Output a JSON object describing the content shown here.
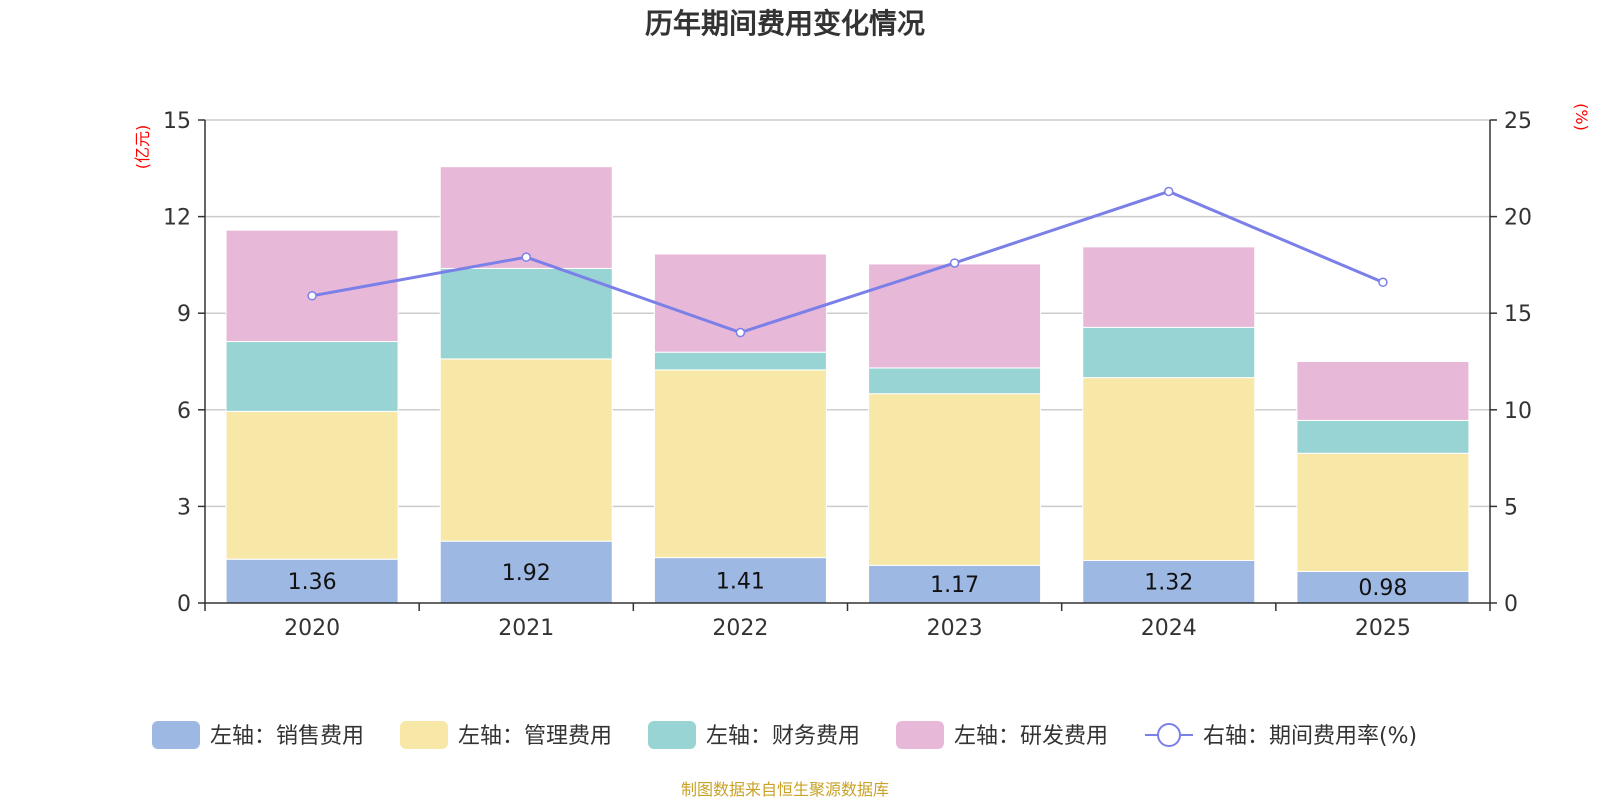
{
  "chart_data": {
    "type": "bar",
    "title": "历年期间费用变化情况",
    "left_unit": "(亿元)",
    "right_unit": "(%)",
    "categories": [
      "2020",
      "2021",
      "2022",
      "2023",
      "2024",
      "2025"
    ],
    "left_axis": {
      "min": 0,
      "max": 15,
      "ticks": [
        "0",
        "3",
        "6",
        "9",
        "12",
        "15"
      ]
    },
    "right_axis": {
      "min": 0,
      "max": 25,
      "ticks": [
        "0",
        "5",
        "10",
        "15",
        "20",
        "25"
      ]
    },
    "series": [
      {
        "name": "左轴：销售费用",
        "kind": "bar",
        "color": "#9db8e2",
        "values": [
          1.36,
          1.92,
          1.41,
          1.17,
          1.32,
          0.98
        ],
        "labels": [
          "1.36",
          "1.92",
          "1.41",
          "1.17",
          "1.32",
          "0.98"
        ]
      },
      {
        "name": "左轴：管理费用",
        "kind": "bar",
        "color": "#f8e8a8",
        "values": [
          4.59,
          5.66,
          5.83,
          5.33,
          5.68,
          3.67
        ]
      },
      {
        "name": "左轴：财务费用",
        "kind": "bar",
        "color": "#98d4d4",
        "values": [
          2.17,
          2.81,
          0.55,
          0.8,
          1.56,
          1.02
        ]
      },
      {
        "name": "左轴：研发费用",
        "kind": "bar",
        "color": "#e8b8d8",
        "values": [
          3.46,
          3.16,
          3.05,
          3.23,
          2.5,
          1.83
        ]
      },
      {
        "name": "右轴：期间费用率(%)",
        "kind": "line",
        "color": "#7b7fe8",
        "values": [
          15.9,
          17.9,
          14.0,
          17.6,
          21.3,
          16.6
        ]
      }
    ],
    "grid": true,
    "legend_position": "bottom"
  },
  "source_text": "制图数据来自恒生聚源数据库"
}
